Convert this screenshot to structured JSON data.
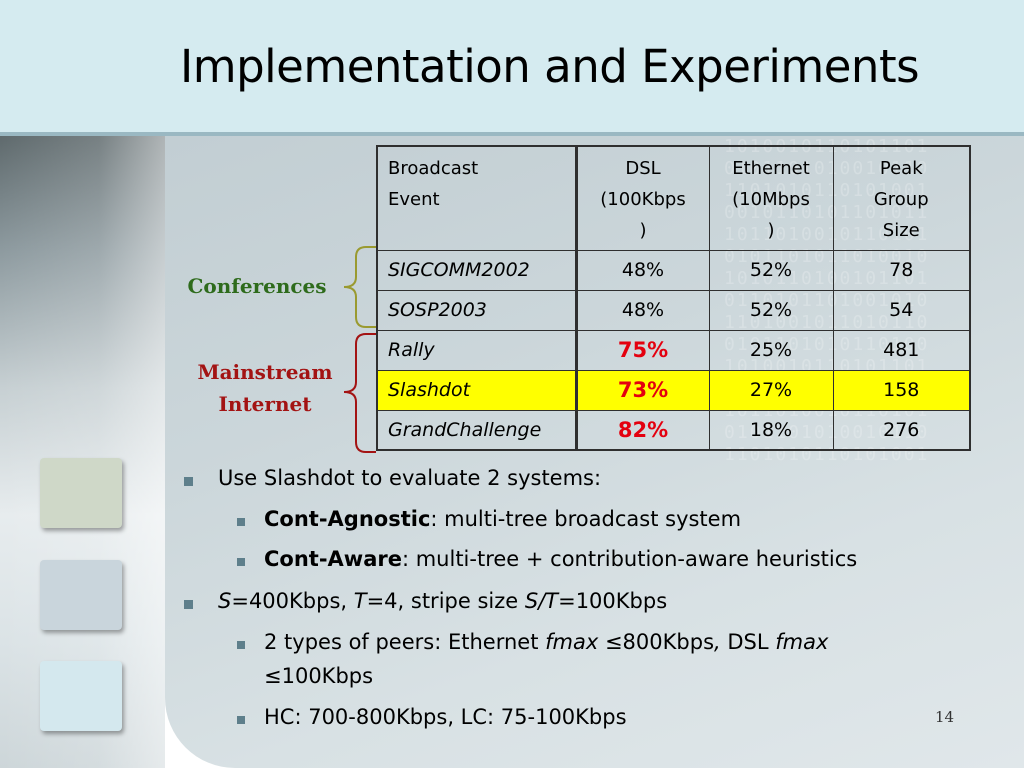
{
  "slide": {
    "title": "Implementation and Experiments",
    "page_number": "14"
  },
  "groups": {
    "conferences": "Conferences",
    "mainstream_line1": "Mainstream",
    "mainstream_line2": "Internet"
  },
  "table": {
    "headers": {
      "event_line1": "Broadcast",
      "event_line2": "Event",
      "dsl_line1": "DSL",
      "dsl_line2": "(100Kbps",
      "dsl_line3": ")",
      "eth_line1": "Ethernet",
      "eth_line2": "(10Mbps",
      "eth_line3": ")",
      "peak_line1": "Peak",
      "peak_line2": "Group",
      "peak_line3": "Size"
    },
    "rows": [
      {
        "event": "SIGCOMM2002",
        "dsl": "48%",
        "ethernet": "52%",
        "peak": "78"
      },
      {
        "event": "SOSP2003",
        "dsl": "48%",
        "ethernet": "52%",
        "peak": "54"
      },
      {
        "event": "Rally",
        "dsl": "75%",
        "ethernet": "25%",
        "peak": "481"
      },
      {
        "event": "Slashdot",
        "dsl": "73%",
        "ethernet": "27%",
        "peak": "158"
      },
      {
        "event": "GrandChallenge",
        "dsl": "82%",
        "ethernet": "18%",
        "peak": "276"
      }
    ]
  },
  "bullets": {
    "b1": "Use Slashdot to evaluate 2 systems:",
    "b1a_bold": "Cont-Agnostic",
    "b1a_rest": ": multi-tree broadcast system",
    "b1b_bold": "Cont-Aware",
    "b1b_rest": ": multi-tree + contribution-aware heuristics",
    "b2_s": "S",
    "b2_part1": "=400Kbps, ",
    "b2_t": "T",
    "b2_part2": "=4, stripe size ",
    "b2_st": "S/T",
    "b2_part3": "=100Kbps",
    "b2a_part1": "2 types of peers: Ethernet ",
    "b2a_fmax1": "fmax",
    "b2a_part2": " ≤800Kbps",
    "b2a_comma": ",",
    "b2a_part3": " DSL ",
    "b2a_fmax2": "fmax",
    "b2a_line2": "≤100Kbps",
    "b2b": "HC: 700-800Kbps, LC: 75-100Kbps"
  },
  "colors": {
    "highlight_row": "#ffff00",
    "red_value": "#e4000f",
    "conference_brace": "#9a9a30",
    "mainstream_brace": "#a31313"
  }
}
